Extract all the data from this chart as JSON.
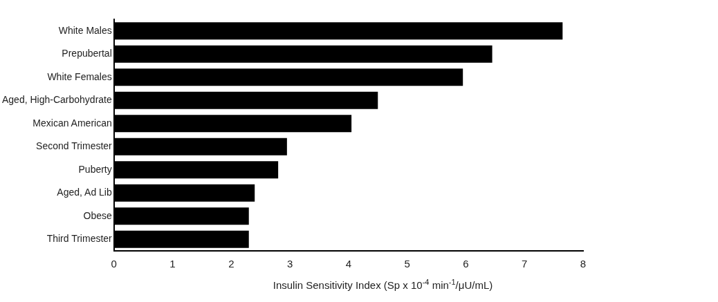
{
  "chart_data": {
    "type": "bar",
    "orientation": "horizontal",
    "xlabel": "Insulin Sensitivity Index (Sp x 10$^{-4}$ min$^{-1}$/μU/mL)",
    "categories": [
      "White Males",
      "Prepubertal",
      "White Females",
      "Aged, High-Carbohydrate",
      "Mexican American",
      "Second Trimester",
      "Puberty",
      "Aged, Ad Lib",
      "Obese",
      "Third Trimester"
    ],
    "values": [
      7.65,
      6.45,
      5.95,
      4.5,
      4.05,
      2.95,
      2.8,
      2.4,
      2.3,
      2.3
    ],
    "color": "#000000",
    "xlim": [
      0,
      8
    ],
    "xticks": [
      0,
      1,
      2,
      3,
      4,
      5,
      6,
      7,
      8
    ],
    "grid": false,
    "legend": false
  }
}
